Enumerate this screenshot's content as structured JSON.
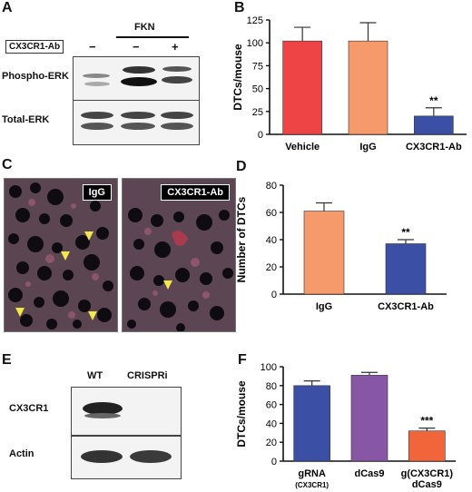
{
  "panels": {
    "a": {
      "letter": "A",
      "treatment": "FKN",
      "antibody_label": "CX3CR1-Ab",
      "antibody_signs": [
        "−",
        "−",
        "+"
      ],
      "rows": [
        "Phospho-ERK",
        "Total-ERK"
      ]
    },
    "b": {
      "letter": "B"
    },
    "c": {
      "letter": "C",
      "images": [
        "IgG",
        "CX3CR1-Ab"
      ]
    },
    "d": {
      "letter": "D"
    },
    "e": {
      "letter": "E",
      "lanes": [
        "WT",
        "CRISPRi"
      ],
      "rows": [
        "CX3CR1",
        "Actin"
      ]
    },
    "f": {
      "letter": "F"
    }
  },
  "chart_data": [
    {
      "id": "B",
      "type": "bar",
      "categories": [
        "Vehicle",
        "IgG",
        "CX3CR1-Ab"
      ],
      "values": [
        102,
        102,
        20
      ],
      "errors": [
        15,
        20,
        9
      ],
      "ylabel": "DTCs/mouse",
      "ylim": [
        0,
        125
      ],
      "yticks": [
        0,
        25,
        50,
        75,
        100,
        125
      ],
      "colors": [
        "#ee4445",
        "#f69a6c",
        "#3b50a4"
      ],
      "annotations": [
        "",
        "",
        "**"
      ]
    },
    {
      "id": "D",
      "type": "bar",
      "categories": [
        "IgG",
        "CX3CR1-Ab"
      ],
      "values": [
        61,
        37
      ],
      "errors": [
        6,
        3
      ],
      "ylabel": "Number of DTCs",
      "ylim": [
        0,
        80
      ],
      "yticks": [
        0,
        20,
        40,
        60,
        80
      ],
      "colors": [
        "#f69a6c",
        "#3b50a4"
      ],
      "annotations": [
        "",
        "**"
      ]
    },
    {
      "id": "F",
      "type": "bar",
      "categories": [
        "gRNA",
        "dCas9",
        "g(CX3CR1)"
      ],
      "category_sublabels": [
        "(CX3CR1)",
        "",
        "dCas9"
      ],
      "values": [
        80,
        91,
        32
      ],
      "errors": [
        5,
        3,
        3
      ],
      "ylabel": "DTCs/mouse",
      "ylim": [
        0,
        100
      ],
      "yticks": [
        0,
        20,
        40,
        60,
        80,
        100
      ],
      "colors": [
        "#3b50a4",
        "#8757a6",
        "#f0663a"
      ],
      "annotations": [
        "",
        "",
        "***"
      ]
    }
  ]
}
